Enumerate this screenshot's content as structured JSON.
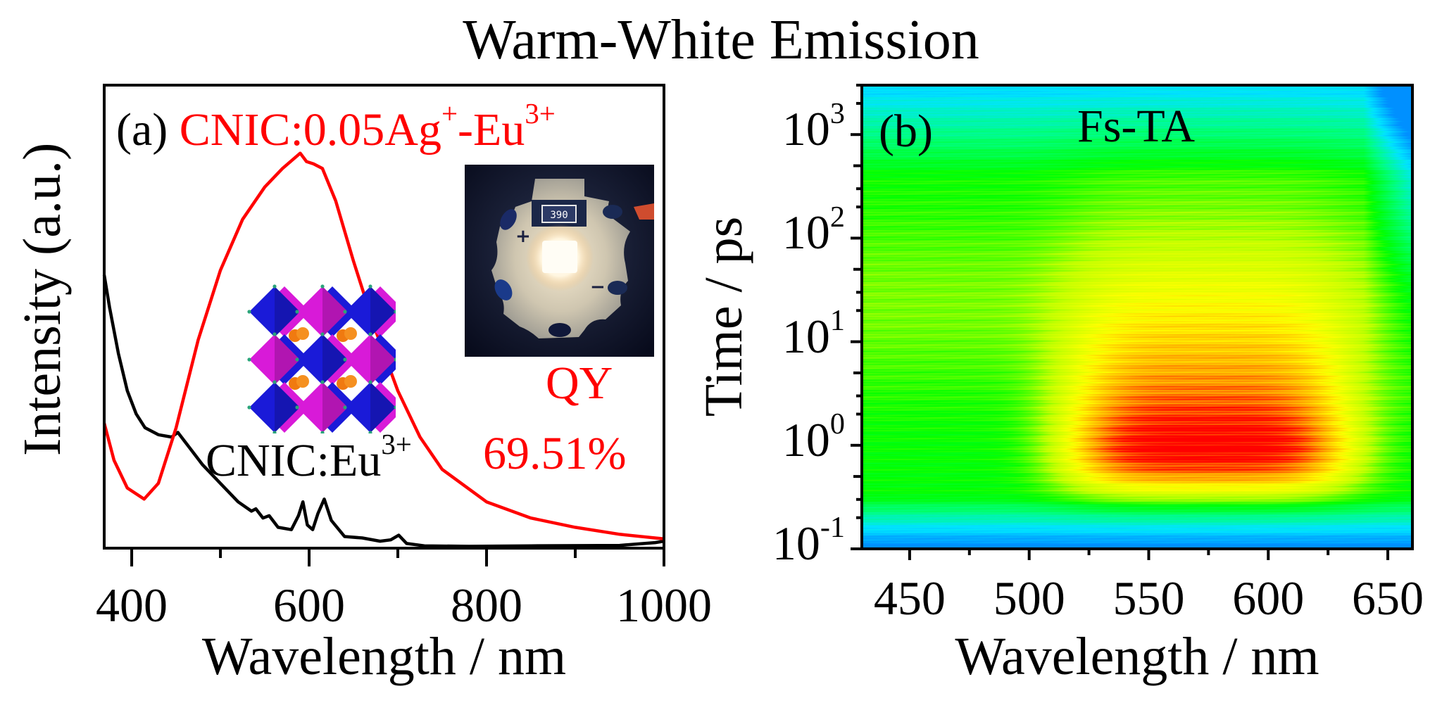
{
  "figure": {
    "title": "Warm-White Emission"
  },
  "chart_data": [
    {
      "panel": "(a)",
      "type": "line",
      "title": "",
      "xlabel": "Wavelength / nm",
      "ylabel": "Intensity (a.u.)",
      "xlim": [
        369,
        1000
      ],
      "ylim": [
        0,
        1
      ],
      "x_ticks": [
        400,
        600,
        800,
        1000
      ],
      "x_minor_ticks": [
        500,
        700,
        900
      ],
      "y_ticks": [],
      "grid": false,
      "annotations": {
        "panel_label": "(a)",
        "red_label_main": "CNIC:0.05Ag",
        "red_label_sup1": "+",
        "red_label_mid": "-Eu",
        "red_label_sup2": "3+",
        "black_label_main": "CNIC:Eu",
        "black_label_sup": "3+",
        "qy_label": "QY",
        "qy_value": "69.51%",
        "inset_photo": "white LED device photo",
        "inset_photo_resistor_text": "390",
        "inset_structure": "perovskite crystal structure (octahedra)"
      },
      "series": [
        {
          "name": "CNIC:Eu3+",
          "color": "#000000",
          "x": [
            369,
            375,
            385,
            395,
            405,
            415,
            430,
            445,
            452,
            460,
            480,
            500,
            520,
            535,
            540,
            548,
            555,
            565,
            580,
            588,
            593,
            598,
            604,
            610,
            617,
            625,
            640,
            660,
            680,
            692,
            701,
            710,
            730,
            780,
            850,
            950,
            990,
            1000
          ],
          "y": [
            0.59,
            0.52,
            0.42,
            0.34,
            0.29,
            0.26,
            0.245,
            0.24,
            0.25,
            0.23,
            0.18,
            0.14,
            0.1,
            0.08,
            0.085,
            0.065,
            0.07,
            0.045,
            0.04,
            0.07,
            0.1,
            0.05,
            0.04,
            0.075,
            0.106,
            0.06,
            0.025,
            0.022,
            0.015,
            0.018,
            0.028,
            0.01,
            0.005,
            0.004,
            0.005,
            0.006,
            0.012,
            0.015
          ]
        },
        {
          "name": "CNIC:0.05Ag+-Eu3+",
          "color": "#ff0000",
          "x": [
            369,
            380,
            395,
            414,
            430,
            450,
            475,
            500,
            525,
            550,
            570,
            590,
            597,
            605,
            615,
            630,
            650,
            675,
            700,
            725,
            750,
            800,
            850,
            900,
            950,
            1000
          ],
          "y": [
            0.27,
            0.19,
            0.13,
            0.106,
            0.14,
            0.26,
            0.45,
            0.6,
            0.71,
            0.78,
            0.82,
            0.853,
            0.835,
            0.83,
            0.82,
            0.75,
            0.62,
            0.47,
            0.34,
            0.24,
            0.17,
            0.1,
            0.065,
            0.045,
            0.03,
            0.02
          ]
        }
      ]
    },
    {
      "panel": "(b)",
      "type": "heatmap",
      "title": "Fs-TA",
      "xlabel": "Wavelength / nm",
      "ylabel": "Time / ps",
      "xlim": [
        430,
        660
      ],
      "ylim": [
        0.1,
        3000
      ],
      "yscale": "log",
      "x_ticks": [
        450,
        500,
        550,
        600,
        650
      ],
      "y_ticks": [
        0.1,
        1,
        10,
        100,
        1000
      ],
      "y_tick_labels": [
        {
          "base": "10",
          "exp": "-1"
        },
        {
          "base": "10",
          "exp": "0"
        },
        {
          "base": "10",
          "exp": "1"
        },
        {
          "base": "10",
          "exp": "2"
        },
        {
          "base": "10",
          "exp": "3"
        }
      ],
      "colormap": [
        "#0090ff",
        "#00e5ff",
        "#00ff80",
        "#00ff00",
        "#c0ff00",
        "#ffff00",
        "#ffa000",
        "#ff0000"
      ],
      "signal_max": {
        "wavelength_nm": 575,
        "time_ps": 0.9
      },
      "signal_description": "strongest signal 530-620 nm at 0.5-3 ps, decaying to green by ~30 ps, cyan at long times near 650 nm and at <0.3 ps",
      "grid": false,
      "annotations": {
        "panel_label": "(b)"
      }
    }
  ]
}
